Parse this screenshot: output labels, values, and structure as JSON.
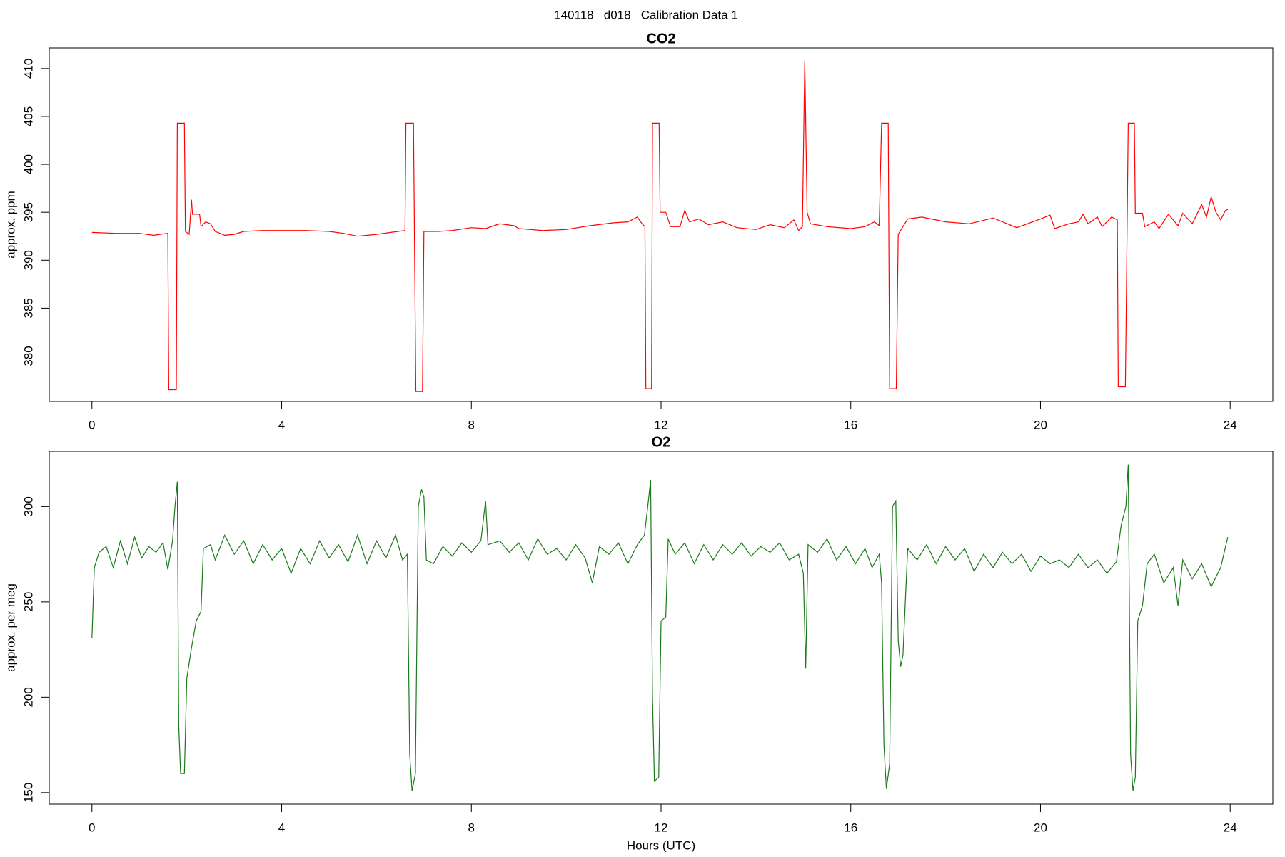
{
  "title": "140118   d018   Calibration Data 1",
  "chart_data": [
    {
      "type": "line",
      "title": "CO2",
      "ylabel": "approx. ppm",
      "xlim": [
        -0.9,
        24.9
      ],
      "xticks": [
        0,
        4,
        8,
        12,
        16,
        20,
        24
      ],
      "ylim": [
        375.27,
        412.15
      ],
      "yticks": [
        380,
        385,
        390,
        395,
        400,
        405,
        410
      ],
      "series": [
        {
          "color": "#ff0000",
          "x": [
            0,
            0.5,
            1.0,
            1.3,
            1.6,
            1.62,
            1.78,
            1.8,
            1.95,
            1.97,
            2.05,
            2.1,
            2.12,
            2.27,
            2.3,
            2.4,
            2.5,
            2.6,
            2.8,
            3.0,
            3.2,
            3.6,
            4.0,
            4.5,
            5.0,
            5.3,
            5.6,
            6.0,
            6.3,
            6.6,
            6.62,
            6.78,
            6.83,
            6.97,
            7.0,
            7.3,
            7.6,
            8.0,
            8.3,
            8.6,
            8.9,
            9.0,
            9.5,
            10.0,
            10.5,
            11.0,
            11.3,
            11.5,
            11.6,
            11.66,
            11.68,
            11.8,
            11.82,
            11.96,
            11.98,
            12.1,
            12.2,
            12.4,
            12.5,
            12.6,
            12.8,
            13.0,
            13.3,
            13.6,
            14.0,
            14.3,
            14.6,
            14.8,
            14.9,
            14.98,
            15.03,
            15.08,
            15.15,
            15.5,
            16.0,
            16.3,
            16.5,
            16.6,
            16.65,
            16.79,
            16.82,
            16.96,
            17.0,
            17.1,
            17.2,
            17.5,
            18.0,
            18.5,
            19.0,
            19.5,
            20.0,
            20.2,
            20.3,
            20.6,
            20.8,
            20.9,
            21.0,
            21.2,
            21.3,
            21.5,
            21.62,
            21.64,
            21.79,
            21.85,
            21.98,
            22.0,
            22.15,
            22.2,
            22.4,
            22.5,
            22.7,
            22.9,
            23.0,
            23.2,
            23.4,
            23.5,
            23.6,
            23.7,
            23.8,
            23.9,
            23.95
          ],
          "values": [
            392.9,
            392.8,
            392.8,
            392.6,
            392.8,
            376.5,
            376.5,
            404.3,
            404.3,
            393,
            392.7,
            396.3,
            394.8,
            394.8,
            393.5,
            394,
            393.8,
            393,
            392.6,
            392.7,
            393,
            393.1,
            393.1,
            393.1,
            393,
            392.8,
            392.5,
            392.7,
            392.9,
            393.1,
            404.3,
            404.3,
            376.3,
            376.3,
            393,
            393,
            393.1,
            393.4,
            393.3,
            393.8,
            393.6,
            393.3,
            393.1,
            393.2,
            393.6,
            393.9,
            394,
            394.5,
            393.8,
            393.5,
            376.6,
            376.6,
            404.3,
            404.3,
            395,
            395,
            393.5,
            393.5,
            395.2,
            394,
            394.3,
            393.7,
            394,
            393.4,
            393.2,
            393.7,
            393.4,
            394.2,
            393.1,
            393.5,
            410.8,
            395,
            393.8,
            393.5,
            393.3,
            393.5,
            394,
            393.6,
            404.3,
            404.3,
            376.6,
            376.6,
            392.7,
            393.5,
            394.3,
            394.5,
            394,
            393.8,
            394.4,
            393.4,
            394.3,
            394.7,
            393.3,
            393.8,
            394,
            394.8,
            393.8,
            394.5,
            393.5,
            394.5,
            394.2,
            376.8,
            376.8,
            404.3,
            404.3,
            394.9,
            394.9,
            393.5,
            394,
            393.3,
            394.8,
            393.6,
            394.9,
            393.8,
            395.8,
            394.5,
            396.6,
            395,
            394.2,
            395.2,
            395.3
          ]
        }
      ]
    },
    {
      "type": "line",
      "title": "O2",
      "ylabel": "approx. per meg",
      "xlabel": "Hours (UTC)",
      "xlim": [
        -0.9,
        24.9
      ],
      "xticks": [
        0,
        4,
        8,
        12,
        16,
        20,
        24
      ],
      "ylim": [
        143.95,
        328.97
      ],
      "yticks": [
        150,
        200,
        250,
        300
      ],
      "series": [
        {
          "color": "#1a7a1a",
          "x": [
            0,
            0.05,
            0.15,
            0.3,
            0.45,
            0.6,
            0.75,
            0.9,
            1.05,
            1.2,
            1.35,
            1.5,
            1.6,
            1.7,
            1.75,
            1.8,
            1.83,
            1.87,
            1.95,
            2.0,
            2.1,
            2.2,
            2.3,
            2.35,
            2.5,
            2.6,
            2.8,
            3.0,
            3.2,
            3.4,
            3.6,
            3.8,
            4.0,
            4.2,
            4.4,
            4.6,
            4.8,
            5.0,
            5.2,
            5.4,
            5.6,
            5.8,
            6.0,
            6.2,
            6.4,
            6.55,
            6.65,
            6.7,
            6.75,
            6.82,
            6.88,
            6.95,
            7.0,
            7.05,
            7.2,
            7.4,
            7.6,
            7.8,
            8.0,
            8.2,
            8.3,
            8.35,
            8.6,
            8.8,
            9.0,
            9.2,
            9.4,
            9.6,
            9.8,
            10.0,
            10.2,
            10.4,
            10.55,
            10.7,
            10.9,
            11.1,
            11.3,
            11.5,
            11.65,
            11.72,
            11.78,
            11.82,
            11.86,
            11.95,
            12.0,
            12.1,
            12.15,
            12.3,
            12.5,
            12.7,
            12.9,
            13.1,
            13.3,
            13.5,
            13.7,
            13.9,
            14.1,
            14.3,
            14.5,
            14.7,
            14.9,
            15.0,
            15.05,
            15.1,
            15.3,
            15.5,
            15.7,
            15.9,
            16.1,
            16.3,
            16.45,
            16.6,
            16.65,
            16.7,
            16.75,
            16.82,
            16.88,
            16.95,
            17.0,
            17.05,
            17.1,
            17.2,
            17.4,
            17.6,
            17.8,
            18.0,
            18.2,
            18.4,
            18.6,
            18.8,
            19.0,
            19.2,
            19.4,
            19.6,
            19.8,
            20.0,
            20.2,
            20.4,
            20.6,
            20.8,
            21.0,
            21.2,
            21.4,
            21.6,
            21.7,
            21.8,
            21.85,
            21.9,
            21.95,
            22.0,
            22.05,
            22.15,
            22.25,
            22.4,
            22.6,
            22.8,
            22.9,
            23.0,
            23.2,
            23.4,
            23.6,
            23.8,
            23.95
          ],
          "values": [
            231,
            268,
            276,
            279,
            268,
            282,
            270,
            284,
            273,
            279,
            276,
            281,
            267,
            282,
            300,
            313,
            185,
            160,
            160,
            210,
            226,
            240,
            245,
            278,
            280,
            272,
            285,
            275,
            282,
            270,
            280,
            272,
            278,
            265,
            278,
            270,
            282,
            273,
            280,
            271,
            285,
            270,
            282,
            273,
            285,
            272,
            275,
            170,
            151,
            160,
            300,
            309,
            305,
            272,
            270,
            279,
            274,
            281,
            276,
            282,
            303,
            280,
            282,
            276,
            281,
            272,
            283,
            275,
            278,
            272,
            280,
            273,
            260,
            279,
            275,
            281,
            270,
            280,
            285,
            300,
            314,
            200,
            156,
            158,
            240,
            242,
            283,
            275,
            281,
            270,
            280,
            272,
            280,
            275,
            281,
            274,
            279,
            276,
            281,
            272,
            275,
            265,
            215,
            280,
            276,
            283,
            272,
            279,
            270,
            278,
            268,
            275,
            260,
            175,
            152,
            165,
            300,
            303,
            230,
            216,
            222,
            278,
            272,
            280,
            270,
            279,
            272,
            278,
            266,
            275,
            268,
            276,
            270,
            275,
            266,
            274,
            270,
            272,
            268,
            275,
            268,
            272,
            265,
            271,
            290,
            300,
            322,
            170,
            151,
            158,
            240,
            248,
            270,
            275,
            260,
            268,
            248,
            272,
            262,
            270,
            258,
            268,
            284
          ]
        }
      ]
    }
  ]
}
